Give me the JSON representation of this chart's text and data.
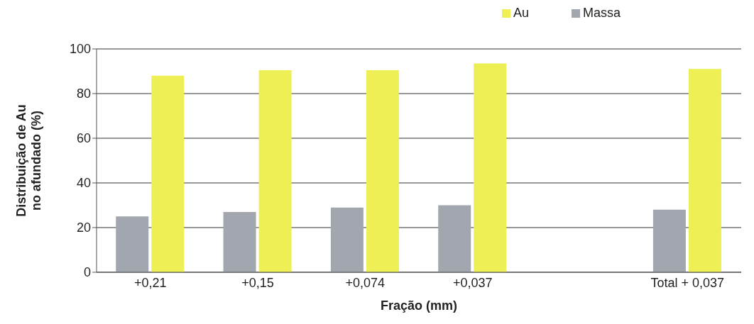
{
  "chart_data": {
    "type": "bar",
    "xlabel": "Fração (mm)",
    "ylabel": "Distribuição de Au no afundado (%)",
    "categories": [
      "+0,21",
      "+0,15",
      "+0,074",
      "+0,037",
      null,
      "Total + 0,037"
    ],
    "series": [
      {
        "name": "Massa",
        "color": "#a2a6ae",
        "values": [
          25,
          27,
          29,
          30,
          null,
          28
        ]
      },
      {
        "name": "Au",
        "color": "#eeee55",
        "values": [
          88,
          90.5,
          90.5,
          93.5,
          null,
          91
        ]
      }
    ],
    "ylim": [
      0,
      100
    ],
    "yticks": [
      0,
      20,
      40,
      60,
      80,
      100
    ],
    "grid": "y",
    "legend": "top right"
  }
}
